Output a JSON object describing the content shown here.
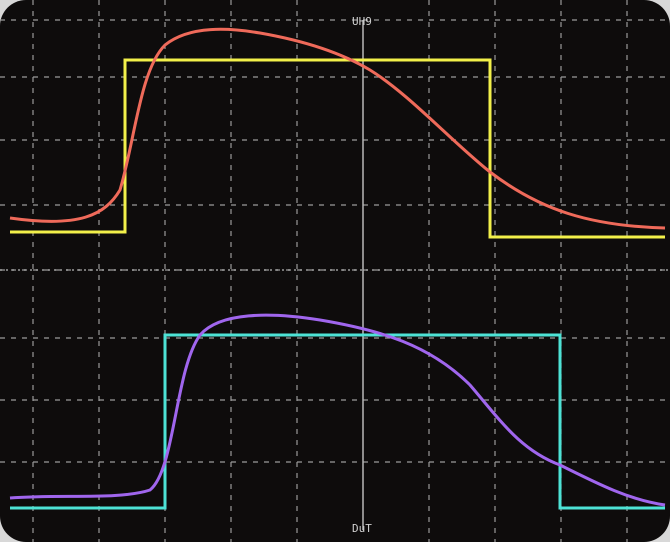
{
  "screen": {
    "top_label": "UH9",
    "bottom_label": "DuT"
  }
}
